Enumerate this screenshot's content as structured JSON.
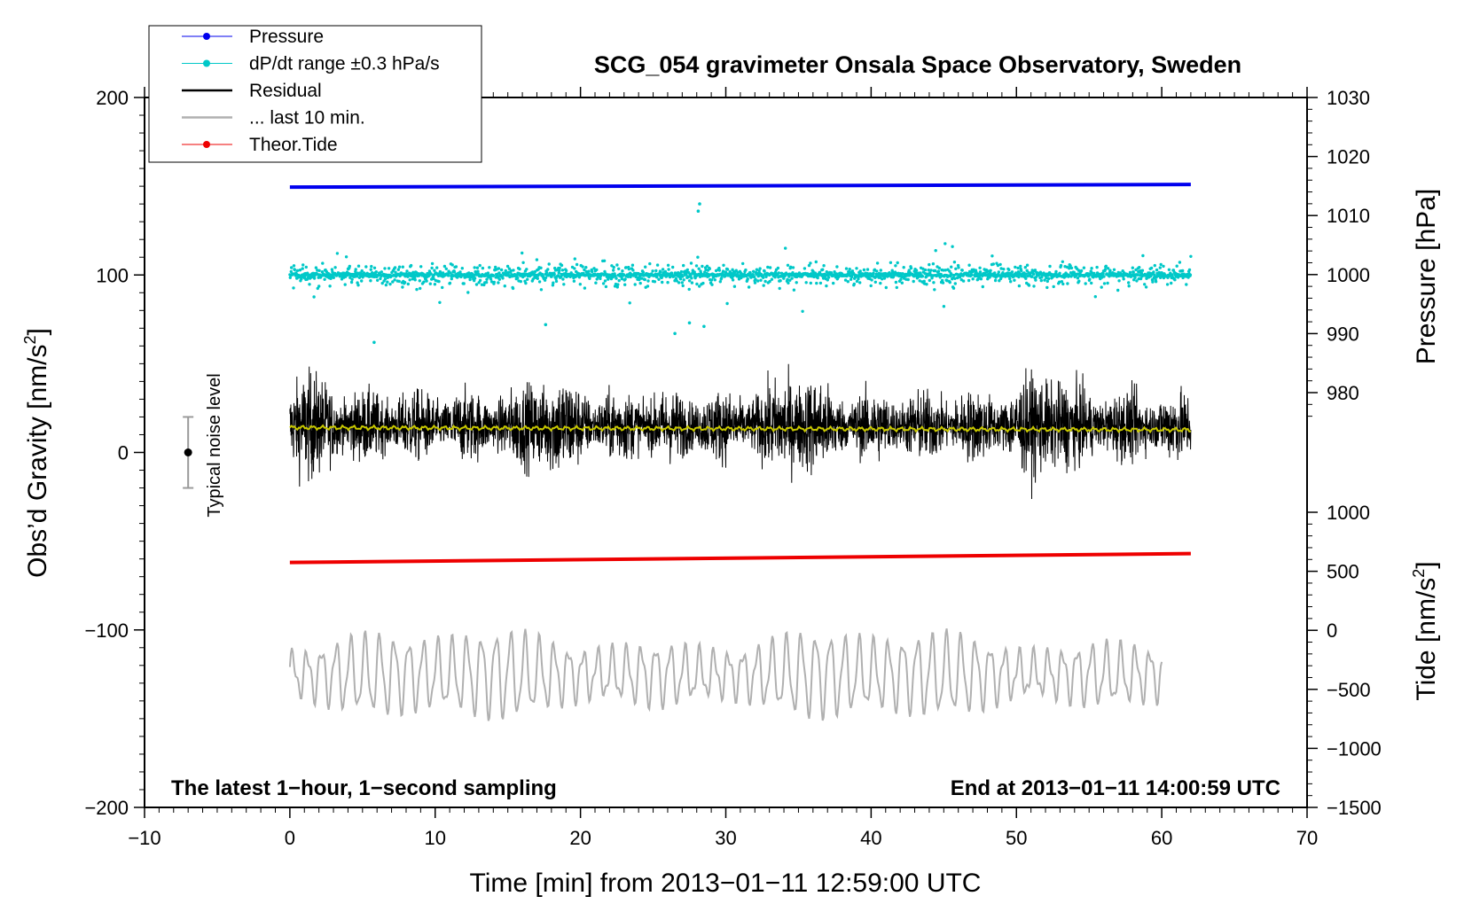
{
  "chart_data": {
    "type": "line",
    "title": "SCG_054 gravimeter Onsala Space Observatory, Sweden",
    "xlabel": "Time [min] from 2013−01−11 12:59:00 UTC",
    "ylabel": "Obs’d Gravity [nm/s²]",
    "ylabel_main": "Obs’d Gravity [nm/s",
    "ylabel_sup": "2",
    "ylabel_close": "]",
    "xlim": [
      -10,
      70
    ],
    "ylim": [
      -200,
      200
    ],
    "x_ticks": [
      -10,
      0,
      10,
      20,
      30,
      40,
      50,
      60,
      70
    ],
    "x_tick_labels": [
      "−10",
      "0",
      "10",
      "20",
      "30",
      "40",
      "50",
      "60",
      "70"
    ],
    "y_ticks": [
      -200,
      -100,
      0,
      100,
      200
    ],
    "y_tick_labels": [
      "−200",
      "−100",
      "0",
      "100",
      "200"
    ],
    "pressure_axis": {
      "label": "Pressure [hPa]",
      "ticks": [
        1030,
        1020,
        1010,
        1000,
        990,
        980
      ],
      "tick_labels": [
        "1030",
        "1020",
        "1010",
        "1000",
        "990",
        "980"
      ],
      "range": [
        970,
        1030
      ]
    },
    "tide_axis": {
      "label": "Tide [nm/s²]",
      "label_main": "Tide [nm/s",
      "label_sup": "2",
      "label_close": "]",
      "ticks": [
        1000,
        500,
        0,
        -500,
        -1000,
        -1500
      ],
      "tick_labels": [
        "1000",
        "500",
        "0",
        "−500",
        "−1000",
        "−1500"
      ],
      "range": [
        -1500,
        1000
      ]
    },
    "legend": [
      {
        "label": "Pressure",
        "color": "#0000ee",
        "marker": "dot"
      },
      {
        "label": "dP/dt range ±0.3 hPa/s",
        "color": "#00c8c8",
        "marker": "dot"
      },
      {
        "label": "Residual",
        "color": "#000000",
        "marker": "line"
      },
      {
        "label": "... last 10 min.",
        "color": "#b0b0b0",
        "marker": "line"
      },
      {
        "label": "Theor.Tide",
        "color": "#ee0000",
        "marker": "dot"
      }
    ],
    "legend_position": "top-left",
    "annotations": {
      "left": "The latest 1−hour, 1−second sampling",
      "right": "End at 2013−01−11 14:00:59 UTC"
    },
    "noise_indicator": {
      "label": "Typical noise level",
      "x": -7,
      "center": 0,
      "range": [
        -20,
        20
      ]
    },
    "series": [
      {
        "name": "Pressure",
        "color": "#0000ee",
        "x_range": [
          0,
          62
        ],
        "y_start": 149.5,
        "y_end": 151.0
      },
      {
        "name": "dP/dt range ±0.3 hPa/s",
        "color": "#00c8c8",
        "x_range": [
          0,
          62
        ],
        "center": 100,
        "spread": 10,
        "outliers_max": 140,
        "outliers_min": 67
      },
      {
        "name": "Residual",
        "color": "#000000",
        "x_range": [
          0,
          62
        ],
        "center": 15,
        "amplitude": 25,
        "max": 68,
        "min": -42
      },
      {
        "name": "Residual smoothed",
        "color": "#c8c800",
        "x_range": [
          0,
          62
        ],
        "center": 14
      },
      {
        "name": "Theor.Tide",
        "color": "#ee0000",
        "x_range": [
          0,
          62
        ],
        "y_start": -62,
        "y_end": -57
      },
      {
        "name": "... last 10 min.",
        "color": "#b0b0b0",
        "x_range": [
          0,
          60
        ],
        "center": -125,
        "amplitude": 22,
        "max": -82,
        "min": -171
      }
    ]
  }
}
